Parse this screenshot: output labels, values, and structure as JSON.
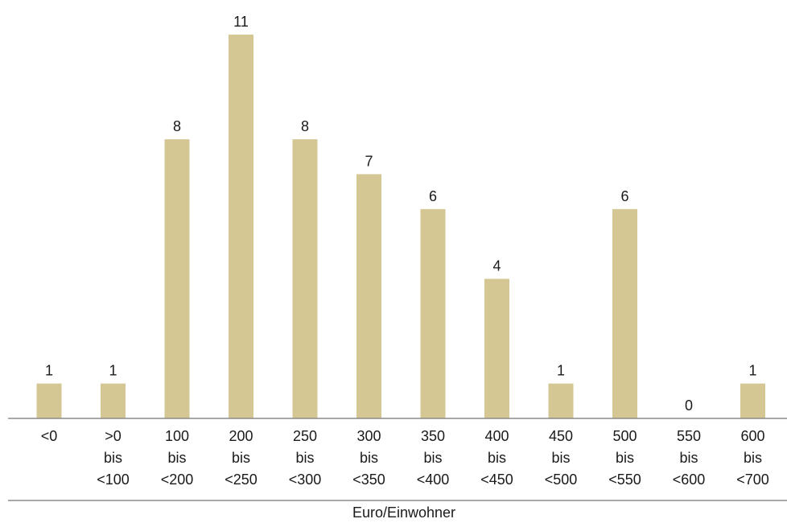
{
  "chart_data": {
    "type": "bar",
    "categories": [
      [
        "<0"
      ],
      [
        ">0",
        "bis",
        "<100"
      ],
      [
        "100",
        "bis",
        "<200"
      ],
      [
        "200",
        "bis",
        "<250"
      ],
      [
        "250",
        "bis",
        "<300"
      ],
      [
        "300",
        "bis",
        "<350"
      ],
      [
        "350",
        "bis",
        "<400"
      ],
      [
        "400",
        "bis",
        "<450"
      ],
      [
        "450",
        "bis",
        "<500"
      ],
      [
        "500",
        "bis",
        "<550"
      ],
      [
        "550",
        "bis",
        "<600"
      ],
      [
        "600",
        "bis",
        "<700"
      ]
    ],
    "values": [
      1,
      1,
      8,
      11,
      8,
      7,
      6,
      4,
      1,
      6,
      0,
      1
    ],
    "xlabel": "Euro/Einwohner",
    "ylabel": "",
    "ylim": [
      0,
      11
    ],
    "grid": false,
    "legend": "none",
    "colors": {
      "bar": "#d5c793",
      "axis": "#8c8c8c",
      "text": "#1a1a1a"
    }
  }
}
